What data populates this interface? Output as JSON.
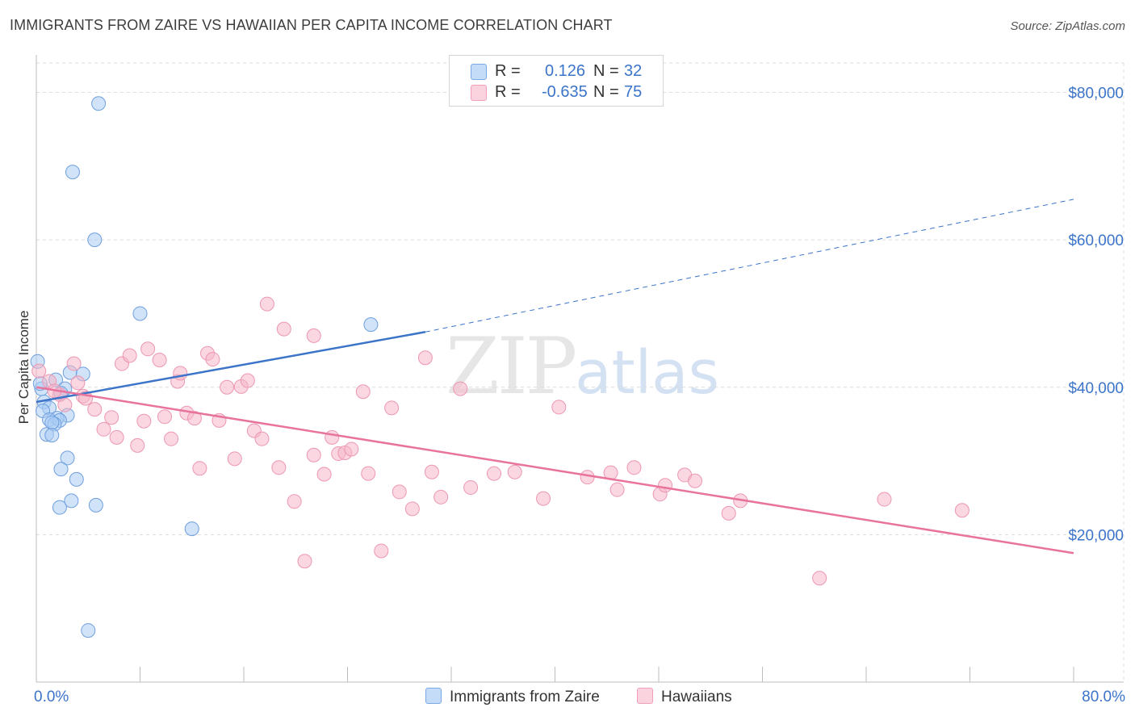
{
  "title": "IMMIGRANTS FROM ZAIRE VS HAWAIIAN PER CAPITA INCOME CORRELATION CHART",
  "source": "Source: ZipAtlas.com",
  "watermark": {
    "zip": "ZIP",
    "atlas": "atlas"
  },
  "legend": {
    "rows": [
      {
        "r_label": "R =",
        "r_value": "0.126",
        "n_label": "N =",
        "n_value": "32",
        "color": "#9cc3f0"
      },
      {
        "r_label": "R =",
        "r_value": "-0.635",
        "n_label": "N =",
        "n_value": "75",
        "color": "#f5b6c9"
      }
    ]
  },
  "bottom_legend": [
    {
      "label": "Immigrants from Zaire",
      "color": "#9cc3f0"
    },
    {
      "label": "Hawaiians",
      "color": "#f5b6c9"
    }
  ],
  "chart_data": {
    "type": "scatter",
    "title": "IMMIGRANTS FROM ZAIRE VS HAWAIIAN PER CAPITA INCOME CORRELATION CHART",
    "xlabel": "",
    "ylabel": "Per Capita Income",
    "xlim": [
      0,
      80
    ],
    "ylim": [
      0,
      84000
    ],
    "x_tick_labels": [
      "0.0%",
      "80.0%"
    ],
    "y_ticks": [
      20000,
      40000,
      60000,
      80000
    ],
    "y_tick_labels": [
      "$20,000",
      "$40,000",
      "$60,000",
      "$80,000"
    ],
    "grid": true,
    "colors": {
      "zaire": "#3b74c9",
      "hawaiians": "#e8739c",
      "axis_label": "#3b74c9"
    },
    "series": [
      {
        "name": "Immigrants from Zaire",
        "r": 0.126,
        "n": 32,
        "trend": {
          "x0": 0,
          "y0": 38000,
          "x1": 30,
          "y1": 47500,
          "dash_to_x": 80,
          "dash_to_y": 65500
        },
        "points": [
          [
            4.8,
            78500
          ],
          [
            2.8,
            69200
          ],
          [
            4.5,
            60000
          ],
          [
            8.0,
            50000
          ],
          [
            25.8,
            48500
          ],
          [
            0.1,
            43500
          ],
          [
            2.6,
            42000
          ],
          [
            3.6,
            41800
          ],
          [
            1.5,
            41000
          ],
          [
            0.4,
            39800
          ],
          [
            2.2,
            39800
          ],
          [
            1.9,
            39200
          ],
          [
            0.6,
            38000
          ],
          [
            1.0,
            37200
          ],
          [
            0.5,
            36800
          ],
          [
            2.4,
            36200
          ],
          [
            1.6,
            35800
          ],
          [
            1.0,
            35600
          ],
          [
            1.8,
            35500
          ],
          [
            1.4,
            35000
          ],
          [
            1.2,
            35200
          ],
          [
            0.8,
            33600
          ],
          [
            1.2,
            33500
          ],
          [
            2.4,
            30400
          ],
          [
            1.9,
            28900
          ],
          [
            3.1,
            27500
          ],
          [
            1.8,
            23700
          ],
          [
            2.7,
            24600
          ],
          [
            4.6,
            24000
          ],
          [
            12.0,
            20800
          ],
          [
            4.0,
            7000
          ],
          [
            0.3,
            40500
          ]
        ]
      },
      {
        "name": "Hawaiians",
        "r": -0.635,
        "n": 75,
        "trend": {
          "x0": 0,
          "y0": 40000,
          "x1": 80,
          "y1": 17500
        },
        "points": [
          [
            0.2,
            42200
          ],
          [
            1.0,
            40800
          ],
          [
            1.8,
            39000
          ],
          [
            2.2,
            37600
          ],
          [
            2.9,
            43200
          ],
          [
            3.2,
            40600
          ],
          [
            3.6,
            38800
          ],
          [
            4.5,
            37000
          ],
          [
            5.2,
            34300
          ],
          [
            5.8,
            35900
          ],
          [
            6.2,
            33200
          ],
          [
            6.6,
            43200
          ],
          [
            7.2,
            44300
          ],
          [
            7.8,
            32100
          ],
          [
            8.3,
            35400
          ],
          [
            8.6,
            45200
          ],
          [
            9.5,
            43700
          ],
          [
            9.9,
            36000
          ],
          [
            10.4,
            33000
          ],
          [
            10.9,
            40800
          ],
          [
            11.1,
            41900
          ],
          [
            11.6,
            36500
          ],
          [
            12.2,
            35800
          ],
          [
            12.6,
            29000
          ],
          [
            13.2,
            44600
          ],
          [
            13.6,
            43800
          ],
          [
            14.1,
            35500
          ],
          [
            14.7,
            40000
          ],
          [
            15.3,
            30300
          ],
          [
            15.8,
            40100
          ],
          [
            16.3,
            40900
          ],
          [
            16.8,
            34100
          ],
          [
            17.4,
            33000
          ],
          [
            17.8,
            51300
          ],
          [
            18.7,
            29100
          ],
          [
            19.1,
            47900
          ],
          [
            19.9,
            24500
          ],
          [
            20.7,
            16400
          ],
          [
            21.4,
            47000
          ],
          [
            21.4,
            30800
          ],
          [
            22.2,
            28200
          ],
          [
            22.8,
            33200
          ],
          [
            23.3,
            31000
          ],
          [
            23.8,
            31100
          ],
          [
            24.3,
            31600
          ],
          [
            25.2,
            39400
          ],
          [
            25.6,
            28300
          ],
          [
            26.6,
            17800
          ],
          [
            27.4,
            37200
          ],
          [
            28.0,
            25800
          ],
          [
            29.0,
            23500
          ],
          [
            30.0,
            44000
          ],
          [
            30.5,
            28500
          ],
          [
            31.2,
            25100
          ],
          [
            32.7,
            39800
          ],
          [
            33.5,
            26400
          ],
          [
            35.3,
            28300
          ],
          [
            36.9,
            28500
          ],
          [
            39.1,
            24900
          ],
          [
            40.3,
            37300
          ],
          [
            42.5,
            27800
          ],
          [
            44.3,
            28400
          ],
          [
            44.8,
            26100
          ],
          [
            46.1,
            29100
          ],
          [
            48.1,
            25500
          ],
          [
            48.5,
            26700
          ],
          [
            50.0,
            28100
          ],
          [
            50.8,
            27300
          ],
          [
            53.4,
            22900
          ],
          [
            54.3,
            24600
          ],
          [
            60.4,
            14100
          ],
          [
            65.4,
            24800
          ],
          [
            71.4,
            23300
          ],
          [
            3.8,
            38500
          ],
          [
            1.4,
            39500
          ]
        ]
      }
    ]
  }
}
